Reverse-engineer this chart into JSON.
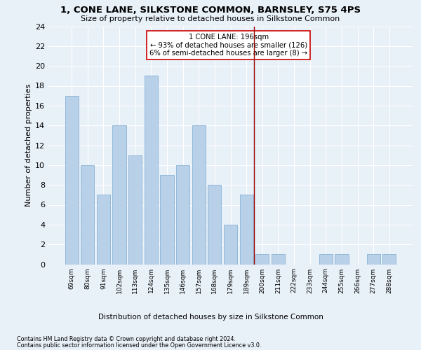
{
  "title": "1, CONE LANE, SILKSTONE COMMON, BARNSLEY, S75 4PS",
  "subtitle": "Size of property relative to detached houses in Silkstone Common",
  "xlabel": "Distribution of detached houses by size in Silkstone Common",
  "ylabel": "Number of detached properties",
  "categories": [
    "69sqm",
    "80sqm",
    "91sqm",
    "102sqm",
    "113sqm",
    "124sqm",
    "135sqm",
    "146sqm",
    "157sqm",
    "168sqm",
    "179sqm",
    "189sqm",
    "200sqm",
    "211sqm",
    "222sqm",
    "233sqm",
    "244sqm",
    "255sqm",
    "266sqm",
    "277sqm",
    "288sqm"
  ],
  "values": [
    17,
    10,
    7,
    14,
    11,
    19,
    9,
    10,
    14,
    8,
    4,
    7,
    1,
    1,
    0,
    0,
    1,
    1,
    0,
    1,
    1
  ],
  "bar_color": "#b8d0e8",
  "bar_edge_color": "#7aaad0",
  "subject_line_color": "#990000",
  "annotation_text": "1 CONE LANE: 196sqm\n← 93% of detached houses are smaller (126)\n6% of semi-detached houses are larger (8) →",
  "annotation_box_color": "#ffffff",
  "annotation_box_edge_color": "#cc0000",
  "footer_line1": "Contains HM Land Registry data © Crown copyright and database right 2024.",
  "footer_line2": "Contains public sector information licensed under the Open Government Licence v3.0.",
  "ylim": [
    0,
    24
  ],
  "background_color": "#e8f0f8",
  "plot_background_color": "#e8f0f8"
}
